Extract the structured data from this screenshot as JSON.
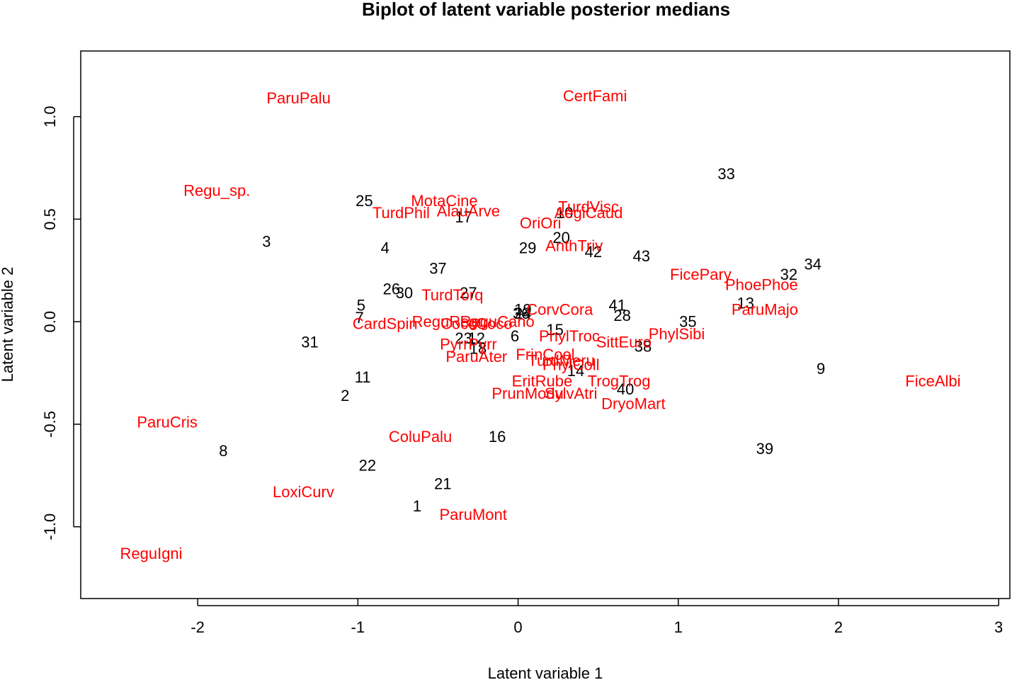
{
  "chart_data": {
    "type": "scatter",
    "title": "Biplot of latent variable posterior medians",
    "xlabel": "Latent variable 1",
    "ylabel": "Latent variable 2",
    "xlim": [
      -2.73,
      3.07
    ],
    "ylim": [
      -1.35,
      1.32
    ],
    "xticks": [
      -2,
      -1,
      0,
      1,
      2,
      3
    ],
    "xtick_labels": [
      "-2",
      "-1",
      "0",
      "1",
      "2",
      "3"
    ],
    "yticks": [
      -1.0,
      -0.5,
      0.0,
      0.5,
      1.0
    ],
    "ytick_labels": [
      "-1.0",
      "-0.5",
      "0.0",
      "0.5",
      "1.0"
    ],
    "grid": false,
    "legend": "none",
    "colors": {
      "sites": "#000000",
      "species": "#ff0000"
    },
    "sites": [
      {
        "label": "1",
        "x": -0.63,
        "y": -0.9
      },
      {
        "label": "2",
        "x": -1.08,
        "y": -0.36
      },
      {
        "label": "3",
        "x": -1.57,
        "y": 0.39
      },
      {
        "label": "4",
        "x": -0.83,
        "y": 0.36
      },
      {
        "label": "5",
        "x": -0.98,
        "y": 0.08
      },
      {
        "label": "6",
        "x": -0.02,
        "y": -0.07
      },
      {
        "label": "7",
        "x": -0.99,
        "y": 0.02
      },
      {
        "label": "8",
        "x": -1.84,
        "y": -0.63
      },
      {
        "label": "9",
        "x": 1.89,
        "y": -0.23
      },
      {
        "label": "10",
        "x": 0.29,
        "y": 0.53
      },
      {
        "label": "11",
        "x": -0.97,
        "y": -0.27
      },
      {
        "label": "12",
        "x": -0.26,
        "y": -0.08
      },
      {
        "label": "13",
        "x": 1.42,
        "y": 0.09
      },
      {
        "label": "14",
        "x": 0.36,
        "y": -0.24
      },
      {
        "label": "15",
        "x": 0.23,
        "y": -0.04
      },
      {
        "label": "16",
        "x": -0.13,
        "y": -0.56
      },
      {
        "label": "17",
        "x": -0.34,
        "y": 0.51
      },
      {
        "label": "18",
        "x": -0.25,
        "y": -0.13
      },
      {
        "label": "19",
        "x": 0.03,
        "y": 0.06
      },
      {
        "label": "20",
        "x": 0.27,
        "y": 0.41
      },
      {
        "label": "21",
        "x": -0.47,
        "y": -0.79
      },
      {
        "label": "22",
        "x": -0.94,
        "y": -0.7
      },
      {
        "label": "23",
        "x": -0.34,
        "y": -0.08
      },
      {
        "label": "24",
        "x": 0.03,
        "y": 0.04
      },
      {
        "label": "25",
        "x": -0.96,
        "y": 0.59
      },
      {
        "label": "26",
        "x": -0.79,
        "y": 0.16
      },
      {
        "label": "27",
        "x": -0.31,
        "y": 0.14
      },
      {
        "label": "28",
        "x": 0.65,
        "y": 0.03
      },
      {
        "label": "29",
        "x": 0.06,
        "y": 0.36
      },
      {
        "label": "30",
        "x": -0.71,
        "y": 0.14
      },
      {
        "label": "31",
        "x": -1.3,
        "y": -0.1
      },
      {
        "label": "32",
        "x": 1.69,
        "y": 0.23
      },
      {
        "label": "33",
        "x": 1.3,
        "y": 0.72
      },
      {
        "label": "34",
        "x": 1.84,
        "y": 0.28
      },
      {
        "label": "35",
        "x": 1.06,
        "y": 0.0
      },
      {
        "label": "36",
        "x": 0.02,
        "y": 0.04
      },
      {
        "label": "37",
        "x": -0.5,
        "y": 0.26
      },
      {
        "label": "38",
        "x": 0.78,
        "y": -0.12
      },
      {
        "label": "39",
        "x": 1.54,
        "y": -0.62
      },
      {
        "label": "40",
        "x": 0.67,
        "y": -0.33
      },
      {
        "label": "41",
        "x": 0.62,
        "y": 0.08
      },
      {
        "label": "42",
        "x": 0.47,
        "y": 0.34
      },
      {
        "label": "43",
        "x": 0.77,
        "y": 0.32
      }
    ],
    "species": [
      {
        "label": "ParuPalu",
        "x": -1.37,
        "y": 1.09
      },
      {
        "label": "CertFami",
        "x": 0.48,
        "y": 1.1
      },
      {
        "label": "Regu_sp.",
        "x": -1.88,
        "y": 0.64
      },
      {
        "label": "MotaCine",
        "x": -0.46,
        "y": 0.59
      },
      {
        "label": "TurdPhil",
        "x": -0.73,
        "y": 0.53
      },
      {
        "label": "AlauArve",
        "x": -0.31,
        "y": 0.54
      },
      {
        "label": "TurdVisc",
        "x": 0.44,
        "y": 0.56
      },
      {
        "label": "AegiCaud",
        "x": 0.44,
        "y": 0.53
      },
      {
        "label": "OriOri",
        "x": 0.14,
        "y": 0.48
      },
      {
        "label": "AnthTriv",
        "x": 0.35,
        "y": 0.37
      },
      {
        "label": "FicePary",
        "x": 1.14,
        "y": 0.23
      },
      {
        "label": "PhoePhoe",
        "x": 1.52,
        "y": 0.18
      },
      {
        "label": "TurdTorq",
        "x": -0.41,
        "y": 0.13
      },
      {
        "label": "CorvCora",
        "x": 0.26,
        "y": 0.06
      },
      {
        "label": "ParuMajo",
        "x": 1.54,
        "y": 0.06
      },
      {
        "label": "CardSpin",
        "x": -0.83,
        "y": -0.01
      },
      {
        "label": "ReguRegu",
        "x": -0.43,
        "y": 0.0
      },
      {
        "label": "CoccCoco",
        "x": -0.26,
        "y": -0.01
      },
      {
        "label": "ReguCano",
        "x": -0.13,
        "y": 0.0
      },
      {
        "label": "PhylTroc",
        "x": 0.32,
        "y": -0.07
      },
      {
        "label": "PhylSibi",
        "x": 0.99,
        "y": -0.06
      },
      {
        "label": "SittEuro",
        "x": 0.66,
        "y": -0.1
      },
      {
        "label": "PyrrPyrr",
        "x": -0.31,
        "y": -0.11
      },
      {
        "label": "ParuAter",
        "x": -0.26,
        "y": -0.17
      },
      {
        "label": "FrinCoel",
        "x": 0.17,
        "y": -0.16
      },
      {
        "label": "TurdMeru",
        "x": 0.27,
        "y": -0.19
      },
      {
        "label": "PhylColl",
        "x": 0.33,
        "y": -0.21
      },
      {
        "label": "EritRube",
        "x": 0.15,
        "y": -0.29
      },
      {
        "label": "TrogTrog",
        "x": 0.63,
        "y": -0.29
      },
      {
        "label": "PrunModu",
        "x": 0.06,
        "y": -0.35
      },
      {
        "label": "SylvAtri",
        "x": 0.33,
        "y": -0.35
      },
      {
        "label": "DryoMart",
        "x": 0.72,
        "y": -0.4
      },
      {
        "label": "FiceAlbi",
        "x": 2.59,
        "y": -0.29
      },
      {
        "label": "ParuCris",
        "x": -2.19,
        "y": -0.49
      },
      {
        "label": "ColuPalu",
        "x": -0.61,
        "y": -0.56
      },
      {
        "label": "LoxiCurv",
        "x": -1.34,
        "y": -0.83
      },
      {
        "label": "ParuMont",
        "x": -0.28,
        "y": -0.94
      },
      {
        "label": "ReguIgni",
        "x": -2.29,
        "y": -1.13
      }
    ]
  }
}
